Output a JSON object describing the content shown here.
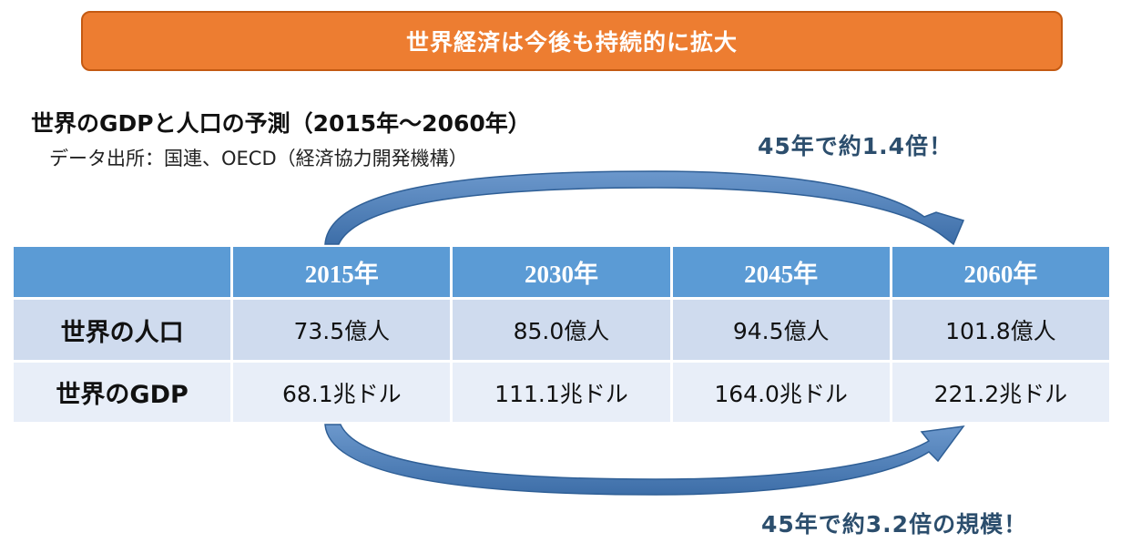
{
  "banner": {
    "title": "世界経済は今後も持続的に拡大"
  },
  "heading": {
    "title": "世界のGDPと人口の予測（2015年～2060年）",
    "source": "データ出所：国連、OECD（経済協力開発機構）"
  },
  "callouts": {
    "population": "45年で約1.4倍！",
    "gdp": "45年で約3.2倍の規模！"
  },
  "table": {
    "columns": [
      "",
      "2015年",
      "2030年",
      "2045年",
      "2060年"
    ],
    "rows": [
      {
        "label": "世界の人口",
        "cells": [
          "73.5億人",
          "85.0億人",
          "94.5億人",
          "101.8億人"
        ]
      },
      {
        "label": "世界のGDP",
        "cells": [
          "68.1兆ドル",
          "111.1兆ドル",
          "164.0兆ドル",
          "221.2兆ドル"
        ]
      }
    ]
  },
  "colors": {
    "banner": "#ed7d31",
    "header": "#5b9bd5",
    "row_dark": "#cfdbee",
    "row_light": "#e8eef8",
    "callout_text": "#2c4e6d",
    "arrow": "#4f7fb6"
  }
}
